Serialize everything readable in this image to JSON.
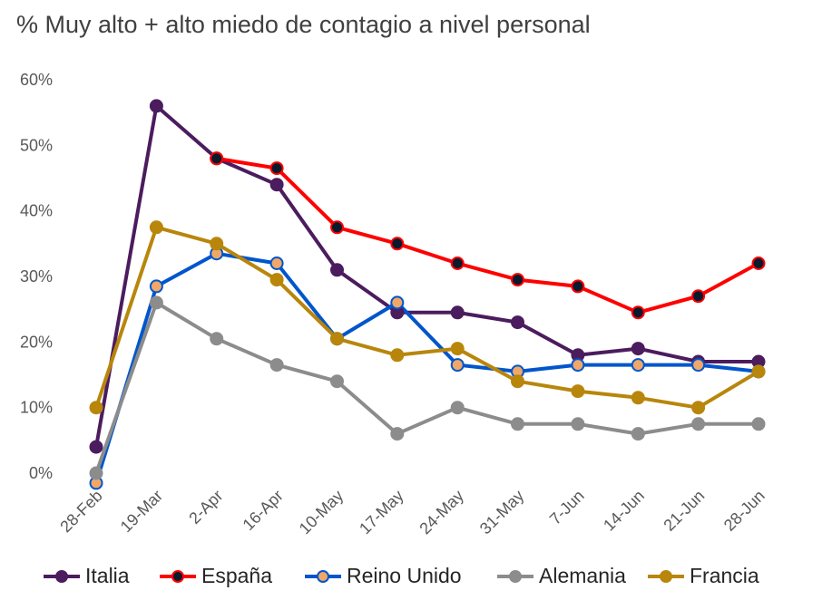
{
  "chart_data": {
    "type": "line",
    "title": "% Muy alto + alto miedo de contagio a nivel personal",
    "xlabel": "",
    "ylabel": "",
    "ylim": [
      0,
      60
    ],
    "yticks": [
      "0%",
      "10%",
      "20%",
      "30%",
      "40%",
      "50%",
      "60%"
    ],
    "categories": [
      "28-Feb",
      "19-Mar",
      "2-Apr",
      "16-Apr",
      "10-May",
      "17-May",
      "24-May",
      "31-May",
      "7-Jun",
      "14-Jun",
      "21-Jun",
      "28-Jun"
    ],
    "grid": false,
    "legend": "bottom",
    "series": [
      {
        "name": "Italia",
        "color": "#4B1C5E",
        "marker_fill": "#4B1C5E",
        "values": [
          4,
          56,
          48,
          44,
          31,
          24.5,
          24.5,
          23,
          18,
          19,
          17,
          17
        ]
      },
      {
        "name": "España",
        "color": "#FF0000",
        "marker_fill": "#0A1A2E",
        "values": [
          null,
          null,
          48,
          46.5,
          37.5,
          35,
          32,
          29.5,
          28.5,
          24.5,
          27,
          32
        ]
      },
      {
        "name": "Reino Unido",
        "color": "#0055CC",
        "marker_fill": "#F0A868",
        "values": [
          -1.5,
          28.5,
          33.5,
          32,
          20.5,
          26,
          16.5,
          15.5,
          16.5,
          16.5,
          16.5,
          15.5
        ]
      },
      {
        "name": "Alemania",
        "color": "#8C8C8C",
        "marker_fill": "#8C8C8C",
        "values": [
          0,
          26,
          20.5,
          16.5,
          14,
          6,
          10,
          7.5,
          7.5,
          6,
          7.5,
          7.5
        ]
      },
      {
        "name": "Francia",
        "color": "#B8860B",
        "marker_fill": "#B8860B",
        "values": [
          10,
          37.5,
          35,
          29.5,
          20.5,
          18,
          19,
          14,
          12.5,
          11.5,
          10,
          15.5
        ]
      }
    ]
  }
}
